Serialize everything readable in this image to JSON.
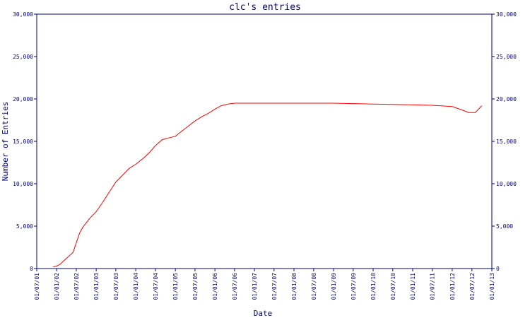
{
  "chart_data": {
    "type": "line",
    "title": "clc's entries",
    "xlabel": "Date",
    "ylabel": "Number of Entries",
    "ylim": [
      0,
      30000
    ],
    "y_ticks": [
      0,
      5000,
      10000,
      15000,
      20000,
      25000,
      30000
    ],
    "y_tick_labels": [
      "0",
      "5,000",
      "10,000",
      "15,000",
      "20,000",
      "25,000",
      "30,000"
    ],
    "x_range": [
      "2001-07-01",
      "2013-01-01"
    ],
    "x_ticks": [
      "2001-07-01",
      "2002-01-01",
      "2002-07-01",
      "2003-01-01",
      "2003-07-01",
      "2004-01-01",
      "2004-07-01",
      "2005-01-01",
      "2005-07-01",
      "2006-01-01",
      "2006-07-01",
      "2007-01-01",
      "2007-07-01",
      "2008-01-01",
      "2008-07-01",
      "2009-01-01",
      "2009-07-01",
      "2010-01-01",
      "2010-07-01",
      "2011-01-01",
      "2011-07-01",
      "2012-01-01",
      "2012-07-01",
      "2013-01-01"
    ],
    "x_tick_labels": [
      "01/07/01",
      "01/01/02",
      "01/07/02",
      "01/01/03",
      "01/07/03",
      "01/01/04",
      "01/07/04",
      "01/01/05",
      "01/07/05",
      "01/01/06",
      "01/07/06",
      "01/01/07",
      "01/07/07",
      "01/01/08",
      "01/07/08",
      "01/01/09",
      "01/07/09",
      "01/01/10",
      "01/07/10",
      "01/01/11",
      "01/07/11",
      "01/01/12",
      "01/07/12",
      "01/01/13"
    ],
    "grid": false,
    "right_axis": true,
    "series": [
      {
        "color": "#ff0000",
        "x": [
          "2001-12-01",
          "2002-01-01",
          "2002-02-01",
          "2002-04-01",
          "2002-06-01",
          "2002-08-01",
          "2002-09-01",
          "2002-11-01",
          "2003-01-01",
          "2003-03-01",
          "2003-05-01",
          "2003-07-01",
          "2003-09-01",
          "2003-11-01",
          "2004-01-01",
          "2004-03-01",
          "2004-05-01",
          "2004-07-01",
          "2004-09-01",
          "2004-11-01",
          "2005-01-01",
          "2005-03-01",
          "2005-05-01",
          "2005-07-01",
          "2005-09-01",
          "2005-11-01",
          "2006-01-01",
          "2006-03-01",
          "2006-05-01",
          "2006-07-01",
          "2007-01-01",
          "2008-01-01",
          "2009-01-01",
          "2009-07-01",
          "2010-01-01",
          "2010-07-01",
          "2011-01-01",
          "2011-07-01",
          "2012-01-01",
          "2012-04-01",
          "2012-06-01",
          "2012-08-01",
          "2012-10-01"
        ],
        "values": [
          200,
          300,
          500,
          1200,
          1900,
          4200,
          4900,
          5900,
          6700,
          7800,
          9000,
          10200,
          11000,
          11800,
          12300,
          12900,
          13600,
          14500,
          15200,
          15400,
          15600,
          16200,
          16800,
          17400,
          17900,
          18300,
          18800,
          19200,
          19400,
          19500,
          19500,
          19500,
          19500,
          19450,
          19400,
          19350,
          19300,
          19250,
          19100,
          18700,
          18400,
          18400,
          19200
        ]
      }
    ]
  }
}
